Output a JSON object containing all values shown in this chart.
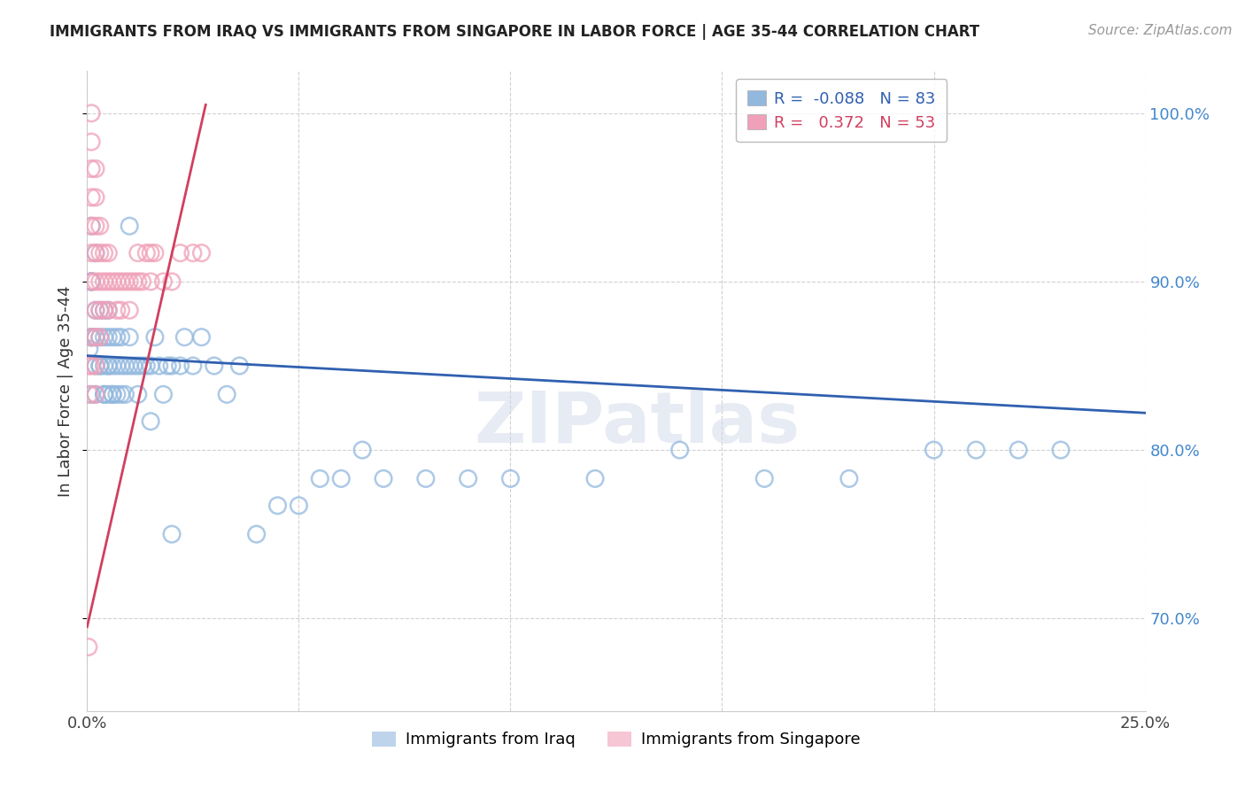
{
  "title": "IMMIGRANTS FROM IRAQ VS IMMIGRANTS FROM SINGAPORE IN LABOR FORCE | AGE 35-44 CORRELATION CHART",
  "source": "Source: ZipAtlas.com",
  "ylabel": "In Labor Force | Age 35-44",
  "x_min": 0.0,
  "x_max": 0.25,
  "y_min": 0.645,
  "y_max": 1.025,
  "iraq_R": -0.088,
  "iraq_N": 83,
  "singapore_R": 0.372,
  "singapore_N": 53,
  "iraq_color": "#92b8de",
  "singapore_color": "#f0a0b8",
  "iraq_line_color": "#3060b0",
  "singapore_line_color": "#d04060",
  "watermark_text": "ZIPatlas",
  "legend_label_iraq": "Immigrants from Iraq",
  "legend_label_singapore": "Immigrants from Singapore",
  "iraq_x": [
    0.0005,
    0.001,
    0.001,
    0.001,
    0.001,
    0.001,
    0.001,
    0.001,
    0.001,
    0.001,
    0.002,
    0.002,
    0.002,
    0.002,
    0.002,
    0.002,
    0.003,
    0.003,
    0.003,
    0.003,
    0.004,
    0.004,
    0.004,
    0.004,
    0.004,
    0.005,
    0.005,
    0.005,
    0.005,
    0.005,
    0.006,
    0.006,
    0.006,
    0.006,
    0.007,
    0.007,
    0.007,
    0.008,
    0.008,
    0.008,
    0.009,
    0.009,
    0.01,
    0.01,
    0.011,
    0.012,
    0.012,
    0.013,
    0.014,
    0.015,
    0.016,
    0.017,
    0.018,
    0.019,
    0.02,
    0.022,
    0.023,
    0.025,
    0.027,
    0.03,
    0.033,
    0.036,
    0.04,
    0.045,
    0.05,
    0.055,
    0.06,
    0.065,
    0.07,
    0.08,
    0.09,
    0.1,
    0.12,
    0.14,
    0.16,
    0.18,
    0.2,
    0.21,
    0.22,
    0.23,
    0.01,
    0.015,
    0.02
  ],
  "iraq_y": [
    0.86,
    0.867,
    0.867,
    0.9,
    0.9,
    0.933,
    0.867,
    0.833,
    0.867,
    0.9,
    0.867,
    0.883,
    0.833,
    0.85,
    0.917,
    0.867,
    0.85,
    0.867,
    0.883,
    0.85,
    0.833,
    0.85,
    0.867,
    0.883,
    0.833,
    0.833,
    0.85,
    0.867,
    0.883,
    0.85,
    0.833,
    0.85,
    0.867,
    0.833,
    0.85,
    0.867,
    0.833,
    0.85,
    0.833,
    0.867,
    0.85,
    0.833,
    0.85,
    0.867,
    0.85,
    0.85,
    0.833,
    0.85,
    0.85,
    0.85,
    0.867,
    0.85,
    0.833,
    0.85,
    0.85,
    0.85,
    0.867,
    0.85,
    0.867,
    0.85,
    0.833,
    0.85,
    0.75,
    0.767,
    0.767,
    0.783,
    0.783,
    0.8,
    0.783,
    0.783,
    0.783,
    0.783,
    0.783,
    0.8,
    0.783,
    0.783,
    0.8,
    0.8,
    0.8,
    0.8,
    0.933,
    0.817,
    0.75
  ],
  "singapore_x": [
    0.0003,
    0.0005,
    0.0005,
    0.001,
    0.001,
    0.001,
    0.001,
    0.001,
    0.001,
    0.001,
    0.001,
    0.001,
    0.002,
    0.002,
    0.002,
    0.002,
    0.002,
    0.002,
    0.002,
    0.002,
    0.002,
    0.003,
    0.003,
    0.003,
    0.003,
    0.003,
    0.004,
    0.004,
    0.004,
    0.005,
    0.005,
    0.005,
    0.006,
    0.007,
    0.007,
    0.008,
    0.008,
    0.009,
    0.01,
    0.01,
    0.011,
    0.012,
    0.012,
    0.013,
    0.014,
    0.015,
    0.015,
    0.016,
    0.018,
    0.02,
    0.022,
    0.025,
    0.027
  ],
  "singapore_y": [
    0.683,
    0.833,
    0.85,
    0.85,
    0.867,
    0.9,
    0.917,
    0.933,
    0.95,
    0.967,
    0.983,
    1.0,
    0.833,
    0.85,
    0.867,
    0.883,
    0.9,
    0.917,
    0.933,
    0.95,
    0.967,
    0.867,
    0.883,
    0.9,
    0.917,
    0.933,
    0.883,
    0.9,
    0.917,
    0.883,
    0.9,
    0.917,
    0.9,
    0.883,
    0.9,
    0.883,
    0.9,
    0.9,
    0.883,
    0.9,
    0.9,
    0.9,
    0.917,
    0.9,
    0.917,
    0.9,
    0.917,
    0.917,
    0.9,
    0.9,
    0.917,
    0.917,
    0.917
  ],
  "iraq_trend_x": [
    0.0,
    0.25
  ],
  "iraq_trend_y": [
    0.856,
    0.822
  ],
  "singapore_trend_x": [
    0.0,
    0.028
  ],
  "singapore_trend_y": [
    0.695,
    1.005
  ]
}
